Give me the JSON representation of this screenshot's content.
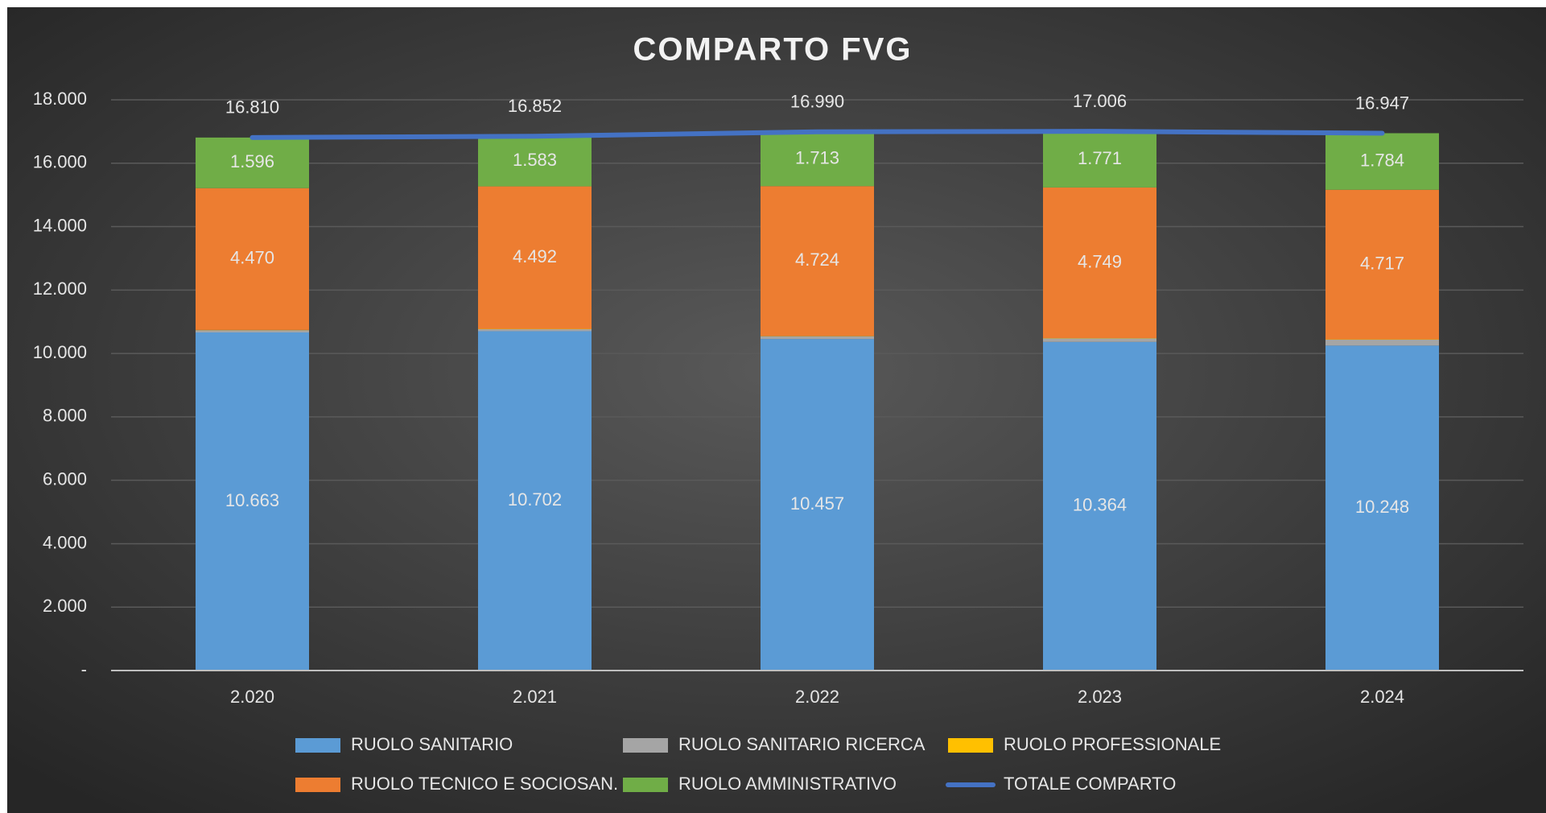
{
  "chart_data": {
    "type": "bar",
    "stacked": true,
    "title": "COMPARTO FVG",
    "categories": [
      "2.020",
      "2.021",
      "2.022",
      "2.023",
      "2.024"
    ],
    "series": [
      {
        "name": "RUOLO SANITARIO",
        "color": "#5b9bd5",
        "values": [
          10663,
          10702,
          10457,
          10364,
          10248
        ],
        "value_labels": [
          "10.663",
          "10.702",
          "10.457",
          "10.364",
          "10.248"
        ]
      },
      {
        "name": "RUOLO SANITARIO RICERCA",
        "color": "#a5a5a5",
        "values": [
          71,
          65,
          86,
          112,
          188
        ]
      },
      {
        "name": "RUOLO PROFESSIONALE",
        "color": "#ffc000",
        "values": [
          10,
          10,
          10,
          10,
          10
        ]
      },
      {
        "name": "RUOLO TECNICO E SOCIOSAN.",
        "color": "#ed7d31",
        "values": [
          4470,
          4492,
          4724,
          4749,
          4717
        ],
        "value_labels": [
          "4.470",
          "4.492",
          "4.724",
          "4.749",
          "4.717"
        ]
      },
      {
        "name": "RUOLO AMMINISTRATIVO",
        "color": "#70ad47",
        "values": [
          1596,
          1583,
          1713,
          1771,
          1784
        ],
        "value_labels": [
          "1.596",
          "1.583",
          "1.713",
          "1.771",
          "1.784"
        ]
      },
      {
        "name": "TOTALE COMPARTO",
        "type": "line",
        "color": "#4472c4",
        "values": [
          16810,
          16852,
          16990,
          17006,
          16947
        ],
        "value_labels": [
          "16.810",
          "16.852",
          "16.990",
          "17.006",
          "16.947"
        ]
      }
    ],
    "ylim": [
      0,
      18000
    ],
    "yticks": [
      {
        "value": 0,
        "label": "-"
      },
      {
        "value": 2000,
        "label": "2.000"
      },
      {
        "value": 4000,
        "label": "4.000"
      },
      {
        "value": 6000,
        "label": "6.000"
      },
      {
        "value": 8000,
        "label": "8.000"
      },
      {
        "value": 10000,
        "label": "10.000"
      },
      {
        "value": 12000,
        "label": "12.000"
      },
      {
        "value": 14000,
        "label": "14.000"
      },
      {
        "value": 16000,
        "label": "16.000"
      },
      {
        "value": 18000,
        "label": "18.000"
      }
    ],
    "grid": true,
    "legend": "bottom"
  }
}
